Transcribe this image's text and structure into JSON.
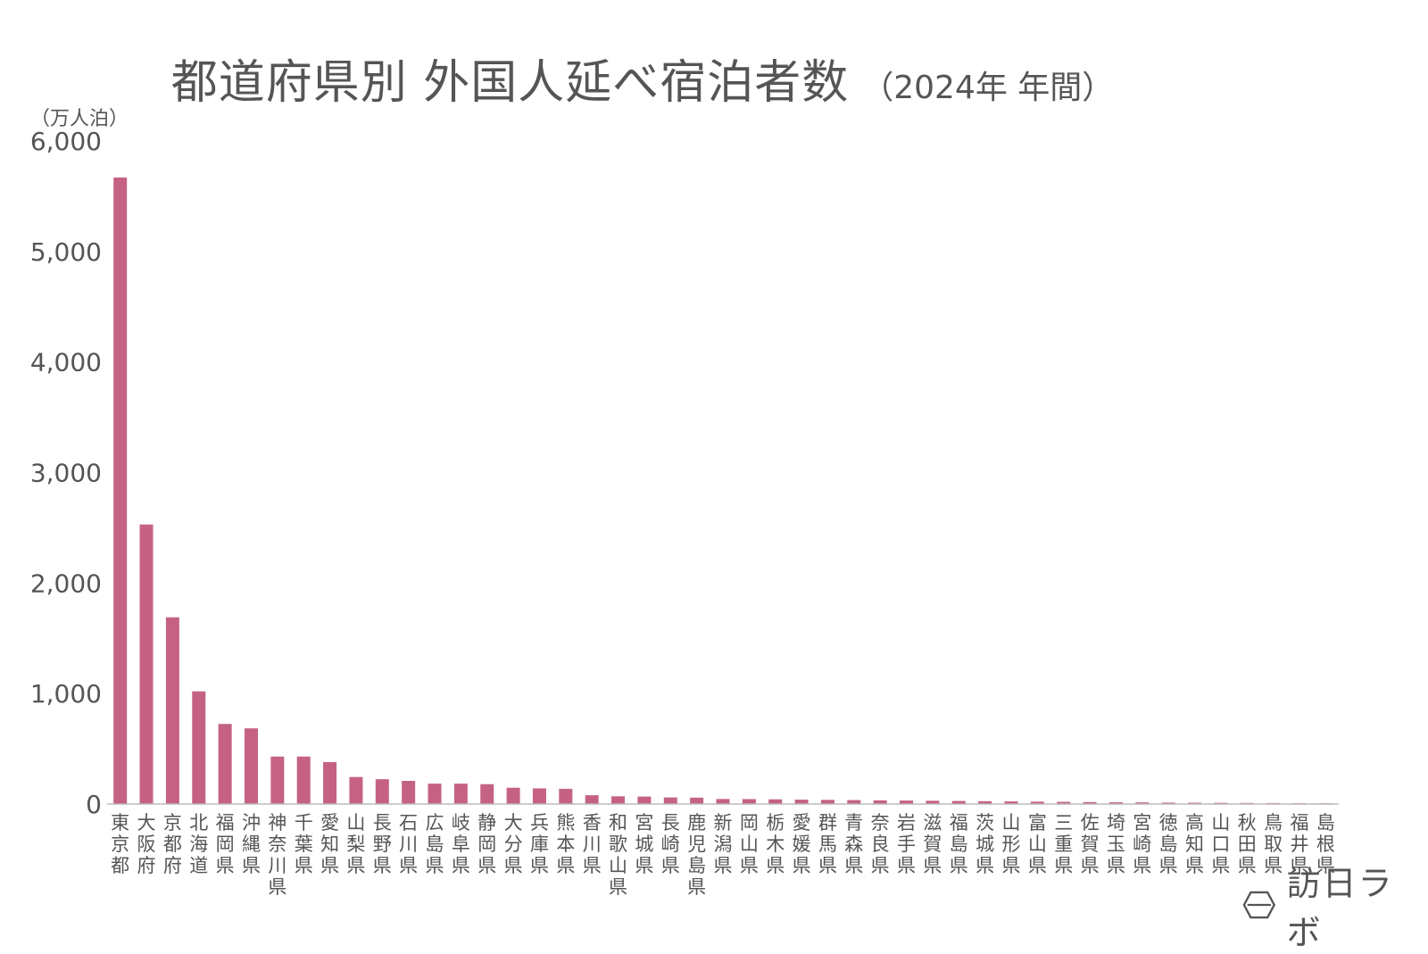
{
  "title": "都道府県別 外国人延べ宿泊者数",
  "subtitle": "（2024年 年間）",
  "brand": "訪日ラボ",
  "bar_color": "#c56284",
  "chart_data": {
    "type": "bar",
    "title": "都道府県別 外国人延べ宿泊者数",
    "subtitle": "（2024年 年間）",
    "ylabel": "（万人泊）",
    "xlabel": "",
    "ylim": [
      0,
      6000
    ],
    "yticks": [
      0,
      1000,
      2000,
      3000,
      4000,
      5000,
      6000
    ],
    "ytick_labels": [
      "0",
      "1,000",
      "2,000",
      "3,000",
      "4,000",
      "5,000",
      "6,000"
    ],
    "grid": false,
    "legend": "none",
    "categories": [
      "東京都",
      "大阪府",
      "京都府",
      "北海道",
      "福岡県",
      "沖縄県",
      "神奈川県",
      "千葉県",
      "愛知県",
      "山梨県",
      "長野県",
      "石川県",
      "広島県",
      "岐阜県",
      "静岡県",
      "大分県",
      "兵庫県",
      "熊本県",
      "香川県",
      "和歌山県",
      "宮城県",
      "長崎県",
      "鹿児島県",
      "新潟県",
      "岡山県",
      "栃木県",
      "愛媛県",
      "群馬県",
      "青森県",
      "奈良県",
      "岩手県",
      "滋賀県",
      "福島県",
      "茨城県",
      "山形県",
      "富山県",
      "三重県",
      "佐賀県",
      "埼玉県",
      "宮崎県",
      "徳島県",
      "高知県",
      "山口県",
      "秋田県",
      "鳥取県",
      "福井県",
      "島根県"
    ],
    "values": [
      5670,
      2530,
      1690,
      1020,
      725,
      685,
      430,
      430,
      380,
      245,
      225,
      210,
      185,
      185,
      180,
      148,
      142,
      138,
      80,
      70,
      68,
      60,
      58,
      46,
      45,
      43,
      40,
      38,
      36,
      34,
      32,
      30,
      28,
      26,
      24,
      22,
      20,
      18,
      16,
      15,
      13,
      12,
      11,
      10,
      9,
      8,
      7
    ]
  }
}
